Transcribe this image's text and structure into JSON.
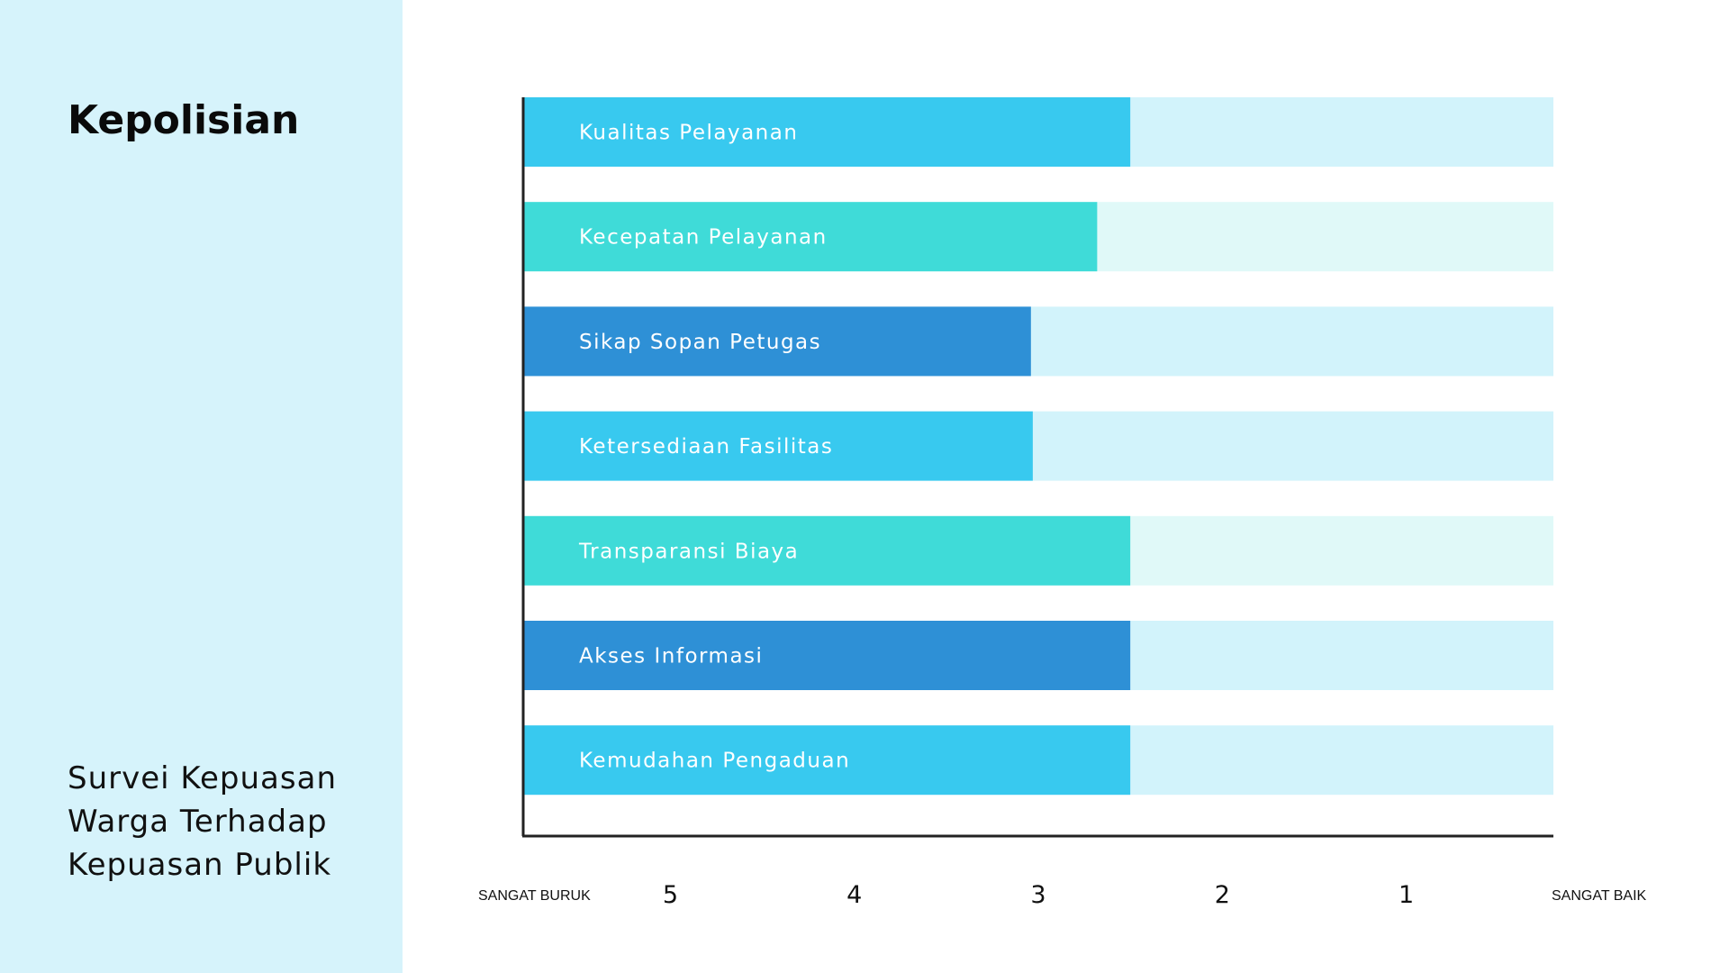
{
  "sidebar": {
    "title": "Kepolisian",
    "subtitle_lines": [
      "Survei Kepuasan",
      "Warga Terhadap",
      "Kepuasan Publik"
    ]
  },
  "chart_data": {
    "type": "bar",
    "orientation": "horizontal",
    "categories": [
      "Kualitas Pelayanan",
      "Kecepatan Pelayanan",
      "Sikap Sopan Petugas",
      "Ketersediaan Fasilitas",
      "Transparansi Biaya",
      "Akses Informasi",
      "Kemudahan Pengaduan"
    ],
    "values": [
      2.5,
      2.68,
      3.04,
      3.03,
      2.5,
      2.5,
      2.5
    ],
    "xticks": [
      5,
      4,
      3,
      2,
      1
    ],
    "xlim": [
      5.8,
      0.2
    ],
    "x_min_label": "SANGAT BURUK",
    "x_max_label": "SANGAT BAIK",
    "grid": false,
    "colors": {
      "bars": [
        "#38c9ef",
        "#3fdbd8",
        "#2e90d6",
        "#38c9ef",
        "#3fdbd8",
        "#2e90d6",
        "#38c9ef"
      ],
      "tracks": [
        "#d2f3fb",
        "#e0f9f8",
        "#d2f3fb",
        "#d2f3fb",
        "#e0f9f8",
        "#d2f3fb",
        "#d2f3fb"
      ],
      "sidebar": "#d6f3fb",
      "axis": "#222222"
    }
  }
}
